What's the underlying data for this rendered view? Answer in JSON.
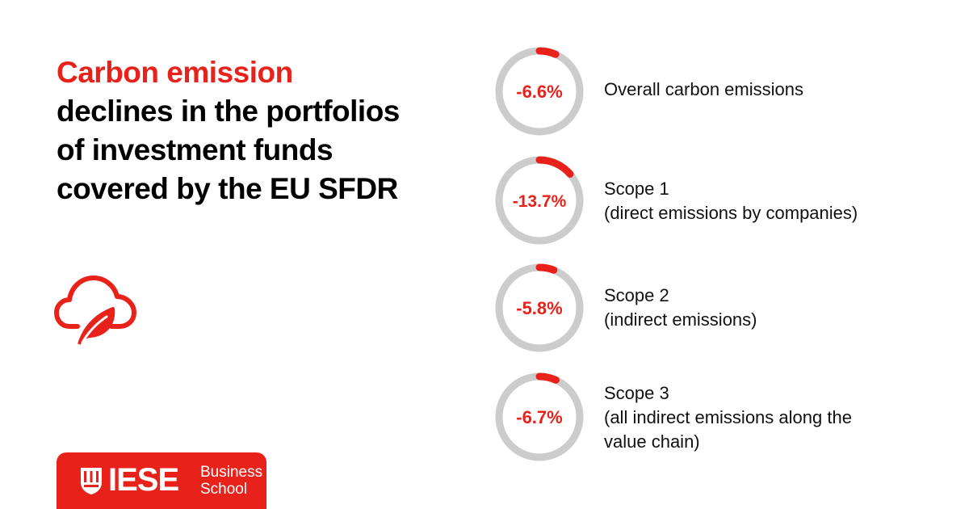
{
  "headline": {
    "accent": "Carbon emission",
    "rest_lines": [
      "declines in the portfolios",
      "of investment funds",
      "covered by the EU SFDR"
    ]
  },
  "logo": {
    "name": "IESE",
    "line1": "Business",
    "line2": "School"
  },
  "colors": {
    "accent": "#e8221b",
    "ring_track": "#cccccc",
    "text": "#000000"
  },
  "icons": {
    "cloud": "cloud-leaf-icon",
    "crest": "iese-crest-icon"
  },
  "chart_data": {
    "type": "pie",
    "title": "Carbon emission declines in the portfolios of investment funds covered by the EU SFDR",
    "unit": "%",
    "items": [
      {
        "value": -6.6,
        "label": "-6.6%",
        "lines": [
          "Overall carbon emissions"
        ]
      },
      {
        "value": -13.7,
        "label": "-13.7%",
        "lines": [
          "Scope 1",
          "(direct emissions by companies)"
        ]
      },
      {
        "value": -5.8,
        "label": "-5.8%",
        "lines": [
          "Scope 2",
          "(indirect emissions)"
        ]
      },
      {
        "value": -6.7,
        "label": "-6.7%",
        "lines": [
          "Scope 3",
          "(all indirect emissions along the",
          "value chain)"
        ]
      }
    ]
  }
}
